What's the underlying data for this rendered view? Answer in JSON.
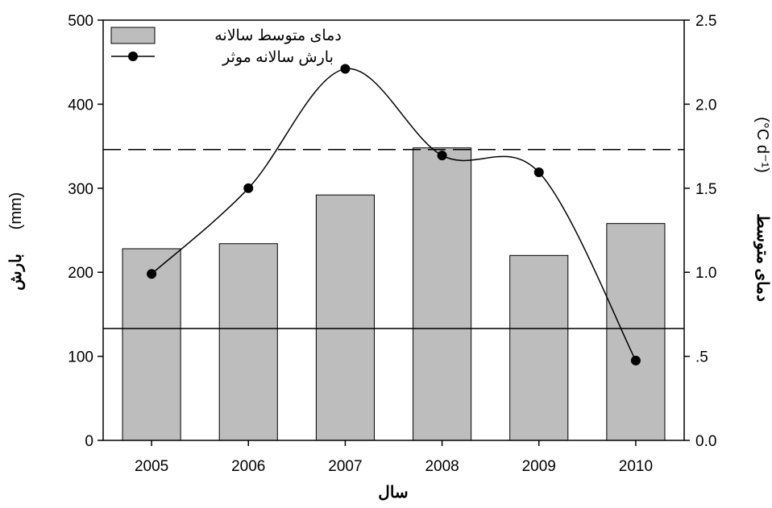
{
  "chart_data": {
    "type": "bar",
    "categories": [
      "2005",
      "2006",
      "2007",
      "2008",
      "2009",
      "2010"
    ],
    "series": [
      {
        "name": "دمای متوسط سالانه",
        "kind": "bar",
        "axis": "right",
        "values": [
          1.14,
          1.17,
          1.46,
          1.74,
          1.1,
          1.29
        ],
        "color": "#bdbdbd",
        "edge_color": "#000000"
      },
      {
        "name": "بارش سالانه موثر",
        "kind": "line",
        "axis": "left",
        "values": [
          198,
          300,
          442,
          339,
          319,
          95
        ],
        "smooth": true,
        "color": "#000000"
      }
    ],
    "reference_lines": [
      {
        "axis": "left",
        "value": 346,
        "style": "dashed"
      },
      {
        "axis": "left",
        "value": 133,
        "style": "solid"
      }
    ],
    "left_axis": {
      "label": "بارش",
      "unit": "(mm)",
      "ylim": [
        0,
        500
      ],
      "ticks": [
        "0",
        "100",
        "200",
        "300",
        "400",
        "500"
      ]
    },
    "right_axis": {
      "label": "دمای متوسط",
      "unit": "(°C d⁻¹)",
      "ylim": [
        0,
        2.5
      ],
      "ticks": [
        "0.0",
        ".5",
        "1.0",
        "1.5",
        "2.0",
        "2.5"
      ]
    },
    "xlabel": "سال",
    "grid": false,
    "legend_position": "top-left"
  }
}
